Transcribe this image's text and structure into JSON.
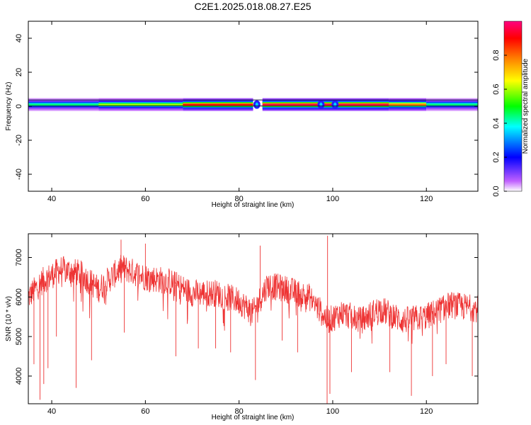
{
  "figure_title": "C2E1.2025.018.08.27.E25",
  "chart_data": [
    {
      "type": "heatmap",
      "xlabel": "Height of straight line (km)",
      "ylabel": "Frequency (Hz)",
      "xlim": [
        35,
        131
      ],
      "ylim": [
        -50,
        50
      ],
      "x_ticks": [
        40,
        60,
        80,
        100,
        120
      ],
      "y_ticks": [
        -40,
        -20,
        0,
        20,
        40
      ],
      "grid": false,
      "colorbar": {
        "label": "Normalized spectral amplitude",
        "range": [
          0,
          1
        ],
        "ticks": [
          "0.0",
          "0.2",
          "0.4",
          "0.6",
          "0.8"
        ],
        "colors": [
          "#ffffff",
          "#c060ff",
          "#0000ff",
          "#00ffff",
          "#00ff00",
          "#ffff00",
          "#ff8000",
          "#ff0000",
          "#ff0080"
        ]
      },
      "band_center_hz": 1,
      "segments": [
        {
          "x_start": 35,
          "x_end": 50,
          "max_amplitude": 0.45
        },
        {
          "x_start": 50,
          "x_end": 68,
          "max_amplitude": 0.6
        },
        {
          "x_start": 68,
          "x_end": 83,
          "max_amplitude": 0.9
        },
        {
          "x_start": 85,
          "x_end": 112,
          "max_amplitude": 0.95
        },
        {
          "x_start": 112,
          "x_end": 120,
          "max_amplitude": 0.8
        },
        {
          "x_start": 120,
          "x_end": 131,
          "max_amplitude": 0.45
        }
      ],
      "dropouts": [
        {
          "x": 83.8,
          "label": "blue gap"
        },
        {
          "x": 97.5,
          "label": "blue blob"
        },
        {
          "x": 100.5,
          "label": "blue blob"
        }
      ]
    },
    {
      "type": "line",
      "xlabel": "Height of straight line (km)",
      "ylabel": "SNR (10 * v/v)",
      "xlim": [
        35,
        131
      ],
      "ylim": [
        3300,
        7600
      ],
      "x_ticks": [
        40,
        60,
        80,
        100,
        120
      ],
      "y_ticks": [
        4000,
        5000,
        6000,
        7000
      ],
      "color": "#ee3333",
      "grid": false,
      "trend": [
        {
          "x": 35,
          "y": 6000
        },
        {
          "x": 38,
          "y": 6400
        },
        {
          "x": 42,
          "y": 6700
        },
        {
          "x": 46,
          "y": 6600
        },
        {
          "x": 50,
          "y": 6200
        },
        {
          "x": 55,
          "y": 6750
        },
        {
          "x": 60,
          "y": 6500
        },
        {
          "x": 65,
          "y": 6400
        },
        {
          "x": 70,
          "y": 6100
        },
        {
          "x": 75,
          "y": 6100
        },
        {
          "x": 80,
          "y": 5900
        },
        {
          "x": 83,
          "y": 5600
        },
        {
          "x": 86,
          "y": 6300
        },
        {
          "x": 90,
          "y": 6200
        },
        {
          "x": 95,
          "y": 6000
        },
        {
          "x": 99,
          "y": 5400
        },
        {
          "x": 102,
          "y": 5600
        },
        {
          "x": 106,
          "y": 5400
        },
        {
          "x": 110,
          "y": 5700
        },
        {
          "x": 115,
          "y": 5400
        },
        {
          "x": 120,
          "y": 5500
        },
        {
          "x": 125,
          "y": 5800
        },
        {
          "x": 131,
          "y": 5700
        }
      ],
      "noise_amplitude": 350,
      "spikes_down": [
        {
          "x": 36.2,
          "y": 4300
        },
        {
          "x": 37.5,
          "y": 3400
        },
        {
          "x": 38.3,
          "y": 3800
        },
        {
          "x": 39.2,
          "y": 4200
        },
        {
          "x": 41.0,
          "y": 5000
        },
        {
          "x": 45.2,
          "y": 3700
        },
        {
          "x": 48.5,
          "y": 4400
        },
        {
          "x": 55.5,
          "y": 5100
        },
        {
          "x": 66.5,
          "y": 4500
        },
        {
          "x": 71.3,
          "y": 4700
        },
        {
          "x": 75.0,
          "y": 4700
        },
        {
          "x": 78.2,
          "y": 4600
        },
        {
          "x": 83.5,
          "y": 3900
        },
        {
          "x": 89.2,
          "y": 4900
        },
        {
          "x": 92.5,
          "y": 4600
        },
        {
          "x": 98.8,
          "y": 3300
        },
        {
          "x": 99.4,
          "y": 3550
        },
        {
          "x": 104.0,
          "y": 4100
        },
        {
          "x": 112.2,
          "y": 4100
        },
        {
          "x": 116.8,
          "y": 3500
        },
        {
          "x": 121.3,
          "y": 4000
        },
        {
          "x": 124.2,
          "y": 4300
        },
        {
          "x": 129.8,
          "y": 4000
        }
      ],
      "spikes_up": [
        {
          "x": 54.8,
          "y": 7450
        },
        {
          "x": 60.0,
          "y": 7350
        },
        {
          "x": 84.5,
          "y": 7300
        },
        {
          "x": 98.9,
          "y": 7550
        }
      ]
    }
  ]
}
